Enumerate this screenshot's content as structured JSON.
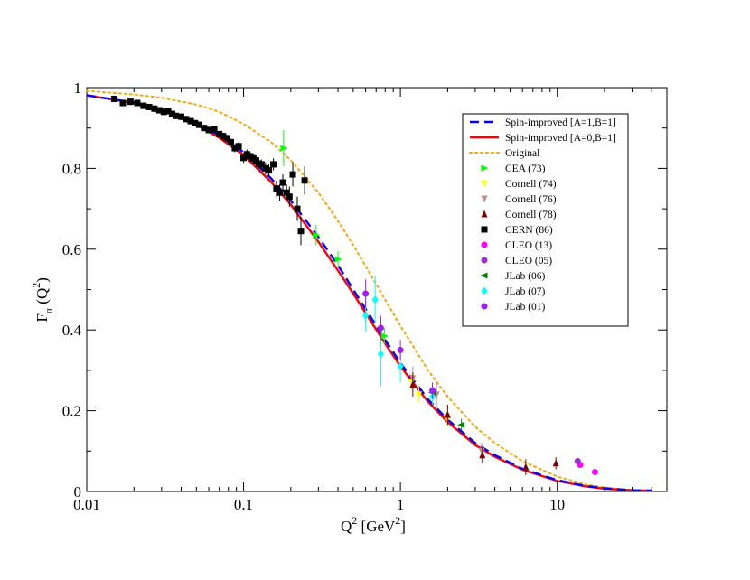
{
  "chart_data": {
    "type": "scatter",
    "title": "",
    "xscale": "log",
    "xlim": [
      0.01,
      50
    ],
    "ylim": [
      0,
      1
    ],
    "x_ticks": [
      {
        "value": 0.01,
        "label": "0.01"
      },
      {
        "value": 0.1,
        "label": "0.1"
      },
      {
        "value": 1,
        "label": "1"
      },
      {
        "value": 10,
        "label": "10"
      }
    ],
    "y_ticks": [
      {
        "value": 0,
        "label": "0"
      },
      {
        "value": 0.2,
        "label": "0.2"
      },
      {
        "value": 0.4,
        "label": "0.4"
      },
      {
        "value": 0.6,
        "label": "0.6"
      },
      {
        "value": 0.8,
        "label": "0.8"
      },
      {
        "value": 1,
        "label": "1"
      }
    ],
    "xlabel": {
      "main": "Q",
      "sup": "2",
      "rest": " [GeV",
      "sup2": "2",
      "end": "]"
    },
    "ylabel": {
      "main": "F",
      "sub": "π",
      "rest": " (Q",
      "sup": "2",
      "end": ")"
    },
    "legend_position": "top-right",
    "curves": [
      {
        "name": "Spin-improved [A=1,B=1]",
        "color": "#0000ff",
        "style": "dashed",
        "points": [
          [
            0.01,
            0.981
          ],
          [
            0.02,
            0.963
          ],
          [
            0.03,
            0.946
          ],
          [
            0.05,
            0.912
          ],
          [
            0.07,
            0.882
          ],
          [
            0.1,
            0.84
          ],
          [
            0.15,
            0.775
          ],
          [
            0.2,
            0.72
          ],
          [
            0.3,
            0.63
          ],
          [
            0.4,
            0.56
          ],
          [
            0.5,
            0.5
          ],
          [
            0.6,
            0.452
          ],
          [
            0.8,
            0.375
          ],
          [
            1.0,
            0.318
          ],
          [
            1.5,
            0.228
          ],
          [
            2.0,
            0.178
          ],
          [
            3.0,
            0.12
          ],
          [
            4.0,
            0.09
          ],
          [
            6.0,
            0.056
          ],
          [
            10,
            0.028
          ],
          [
            15,
            0.014
          ],
          [
            20,
            0.008
          ],
          [
            30,
            0.003
          ],
          [
            40,
            0.002
          ]
        ]
      },
      {
        "name": "Spin-improved [A=0,B=1]",
        "color": "#ff0000",
        "style": "solid",
        "points": [
          [
            0.01,
            0.981
          ],
          [
            0.02,
            0.962
          ],
          [
            0.03,
            0.944
          ],
          [
            0.05,
            0.908
          ],
          [
            0.07,
            0.876
          ],
          [
            0.1,
            0.833
          ],
          [
            0.15,
            0.766
          ],
          [
            0.2,
            0.71
          ],
          [
            0.3,
            0.618
          ],
          [
            0.4,
            0.547
          ],
          [
            0.5,
            0.49
          ],
          [
            0.6,
            0.442
          ],
          [
            0.8,
            0.366
          ],
          [
            1.0,
            0.31
          ],
          [
            1.5,
            0.222
          ],
          [
            2.0,
            0.172
          ],
          [
            3.0,
            0.115
          ],
          [
            4.0,
            0.086
          ],
          [
            6.0,
            0.054
          ],
          [
            10,
            0.026
          ],
          [
            15,
            0.013
          ],
          [
            20,
            0.007
          ],
          [
            30,
            0.003
          ],
          [
            40,
            0.002
          ]
        ]
      },
      {
        "name": "Original",
        "color": "#ffa500",
        "style": "dotted",
        "points": [
          [
            0.01,
            0.992
          ],
          [
            0.02,
            0.983
          ],
          [
            0.03,
            0.975
          ],
          [
            0.05,
            0.958
          ],
          [
            0.07,
            0.94
          ],
          [
            0.1,
            0.91
          ],
          [
            0.15,
            0.865
          ],
          [
            0.2,
            0.82
          ],
          [
            0.3,
            0.74
          ],
          [
            0.4,
            0.67
          ],
          [
            0.5,
            0.61
          ],
          [
            0.6,
            0.558
          ],
          [
            0.8,
            0.475
          ],
          [
            1.0,
            0.41
          ],
          [
            1.5,
            0.3
          ],
          [
            2.0,
            0.235
          ],
          [
            3.0,
            0.16
          ],
          [
            4.0,
            0.12
          ],
          [
            6.0,
            0.075
          ],
          [
            10,
            0.037
          ],
          [
            15,
            0.018
          ],
          [
            20,
            0.01
          ],
          [
            30,
            0.004
          ],
          [
            40,
            0.002
          ]
        ]
      }
    ],
    "datasets": [
      {
        "name": "CEA (73)",
        "color": "#00ff00",
        "marker": "triangle-right",
        "points": [
          [
            0.18,
            0.85,
            0.045
          ],
          [
            0.29,
            0.635,
            0.025
          ],
          [
            0.4,
            0.575,
            0.02
          ],
          [
            0.79,
            0.385,
            0.02
          ]
        ]
      },
      {
        "name": "Cornell (74)",
        "color": "#ffff00",
        "marker": "triangle-down",
        "points": [
          [
            1.18,
            0.27,
            0.02
          ],
          [
            1.31,
            0.24,
            0.02
          ],
          [
            1.99,
            0.18,
            0.02
          ]
        ]
      },
      {
        "name": "Cornell (76)",
        "color": "#bc8f8f",
        "marker": "triangle-down",
        "points": [
          [
            1.2,
            0.28,
            0.03
          ],
          [
            1.7,
            0.24,
            0.03
          ],
          [
            3.3,
            0.1,
            0.02
          ]
        ]
      },
      {
        "name": "Cornell (78)",
        "color": "#800000",
        "marker": "triangle-up",
        "points": [
          [
            1.2,
            0.265,
            0.03
          ],
          [
            2.0,
            0.19,
            0.025
          ],
          [
            3.33,
            0.09,
            0.02
          ],
          [
            6.3,
            0.06,
            0.02
          ],
          [
            9.8,
            0.07,
            0.015
          ]
        ]
      },
      {
        "name": "CERN (86)",
        "color": "#000000",
        "marker": "square",
        "points": [
          [
            0.015,
            0.972,
            0.008
          ],
          [
            0.017,
            0.962,
            0.008
          ],
          [
            0.019,
            0.965,
            0.008
          ],
          [
            0.021,
            0.962,
            0.008
          ],
          [
            0.023,
            0.955,
            0.008
          ],
          [
            0.025,
            0.952,
            0.008
          ],
          [
            0.027,
            0.948,
            0.008
          ],
          [
            0.029,
            0.944,
            0.008
          ],
          [
            0.031,
            0.94,
            0.008
          ],
          [
            0.033,
            0.942,
            0.008
          ],
          [
            0.035,
            0.935,
            0.008
          ],
          [
            0.037,
            0.93,
            0.008
          ],
          [
            0.04,
            0.928,
            0.008
          ],
          [
            0.043,
            0.922,
            0.008
          ],
          [
            0.046,
            0.917,
            0.008
          ],
          [
            0.049,
            0.912,
            0.008
          ],
          [
            0.052,
            0.908,
            0.008
          ],
          [
            0.056,
            0.9,
            0.008
          ],
          [
            0.06,
            0.895,
            0.008
          ],
          [
            0.065,
            0.897,
            0.008
          ],
          [
            0.07,
            0.885,
            0.008
          ],
          [
            0.074,
            0.88,
            0.008
          ],
          [
            0.078,
            0.875,
            0.008
          ],
          [
            0.083,
            0.865,
            0.008
          ],
          [
            0.088,
            0.85,
            0.01
          ],
          [
            0.093,
            0.855,
            0.01
          ],
          [
            0.1,
            0.826,
            0.012
          ],
          [
            0.105,
            0.835,
            0.012
          ],
          [
            0.11,
            0.83,
            0.012
          ],
          [
            0.115,
            0.825,
            0.012
          ],
          [
            0.12,
            0.82,
            0.012
          ],
          [
            0.125,
            0.812,
            0.012
          ],
          [
            0.13,
            0.81,
            0.012
          ],
          [
            0.138,
            0.8,
            0.015
          ],
          [
            0.145,
            0.795,
            0.015
          ],
          [
            0.155,
            0.81,
            0.015
          ],
          [
            0.162,
            0.75,
            0.02
          ],
          [
            0.17,
            0.74,
            0.02
          ],
          [
            0.178,
            0.765,
            0.02
          ],
          [
            0.188,
            0.74,
            0.02
          ],
          [
            0.196,
            0.73,
            0.025
          ],
          [
            0.206,
            0.785,
            0.03
          ],
          [
            0.22,
            0.7,
            0.03
          ],
          [
            0.232,
            0.645,
            0.035
          ],
          [
            0.245,
            0.77,
            0.035
          ]
        ]
      },
      {
        "name": "CLEO (13)",
        "color": "#ff00ff",
        "marker": "circle",
        "points": [
          [
            14.0,
            0.066,
            0.005
          ],
          [
            17.4,
            0.048,
            0.005
          ]
        ]
      },
      {
        "name": "CLEO (05)",
        "color": "#9932cc",
        "marker": "circle",
        "points": [
          [
            13.5,
            0.075,
            0.005
          ]
        ]
      },
      {
        "name": "JLab (06)",
        "color": "#008000",
        "marker": "triangle-left",
        "points": [
          [
            1.6,
            0.245,
            0.015
          ],
          [
            2.45,
            0.165,
            0.015
          ]
        ]
      },
      {
        "name": "JLab (07)",
        "color": "#00ffff",
        "marker": "diamond",
        "points": [
          [
            0.6,
            0.435,
            0.04
          ],
          [
            0.69,
            0.475,
            0.06
          ],
          [
            0.75,
            0.34,
            0.08
          ],
          [
            1.0,
            0.31,
            0.04
          ],
          [
            1.6,
            0.235,
            0.02
          ]
        ]
      },
      {
        "name": "JLab (01)",
        "color": "#a020f0",
        "marker": "circle",
        "points": [
          [
            0.6,
            0.49,
            0.035
          ],
          [
            0.75,
            0.405,
            0.03
          ],
          [
            1.0,
            0.35,
            0.025
          ],
          [
            1.6,
            0.25,
            0.02
          ]
        ]
      }
    ]
  }
}
